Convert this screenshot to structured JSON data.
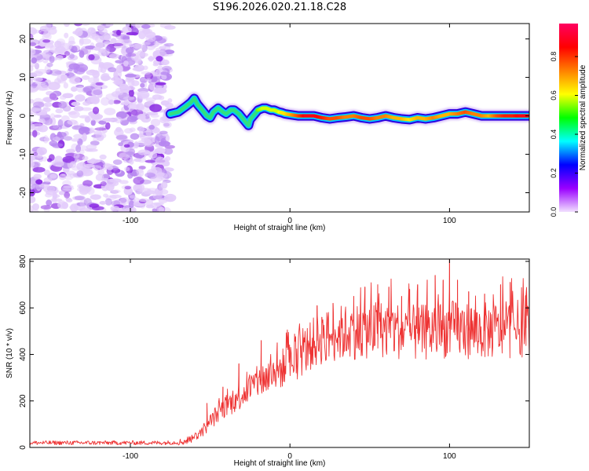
{
  "title": "S196.2026.020.21.18.C28",
  "chart_data": [
    {
      "type": "heatmap",
      "name": "spectrogram",
      "xlabel": "Height of straight line (km)",
      "ylabel": "Frequency (Hz)",
      "xlim": [
        -163,
        150
      ],
      "ylim": [
        -25,
        24
      ],
      "xticks": [
        -100,
        0,
        100
      ],
      "xtick_labels": [
        "-100",
        "0",
        "100"
      ],
      "yticks": [
        -20,
        -10,
        0,
        10,
        20
      ],
      "ytick_labels": [
        "-20",
        "-10",
        "0",
        "10",
        "20"
      ],
      "noise_region_x": [
        -163,
        -75
      ],
      "signal_trace": {
        "x": [
          -75,
          -70,
          -65,
          -62,
          -60,
          -58,
          -55,
          -52,
          -50,
          -48,
          -45,
          -42,
          -40,
          -37,
          -35,
          -32,
          -30,
          -28,
          -26,
          -25,
          -22,
          -20,
          -17,
          -15,
          -12,
          -10,
          -7,
          -5,
          -3,
          0,
          5,
          10,
          15,
          20,
          25,
          30,
          35,
          40,
          45,
          50,
          55,
          60,
          65,
          70,
          75,
          80,
          85,
          90,
          95,
          100,
          105,
          110,
          115,
          120,
          125,
          130,
          135,
          140,
          145,
          150
        ],
        "y": [
          0.5,
          1,
          2.5,
          3.5,
          4.5,
          3,
          1.5,
          0,
          -0.5,
          1,
          2,
          1,
          0.5,
          1.5,
          1.5,
          0.5,
          -0.5,
          -1.5,
          -2.5,
          -1,
          0.5,
          1.5,
          2,
          2,
          1.5,
          1.5,
          1,
          0.8,
          0.5,
          0.3,
          0,
          0,
          0,
          -0.5,
          -0.8,
          -0.5,
          -0.3,
          0,
          -0.5,
          -0.8,
          -0.5,
          0,
          -0.5,
          -0.8,
          -1,
          -0.5,
          -0.8,
          -0.5,
          0,
          0.5,
          0.5,
          1,
          0.5,
          0,
          0,
          0,
          0,
          0,
          0,
          0
        ],
        "amplitude": [
          0.3,
          0.35,
          0.45,
          0.5,
          0.5,
          0.45,
          0.4,
          0.35,
          0.35,
          0.4,
          0.45,
          0.45,
          0.45,
          0.45,
          0.5,
          0.45,
          0.4,
          0.35,
          0.3,
          0.35,
          0.5,
          0.55,
          0.6,
          0.6,
          0.6,
          0.6,
          0.6,
          0.65,
          0.65,
          0.7,
          0.8,
          0.9,
          0.9,
          0.85,
          0.8,
          0.8,
          0.75,
          0.75,
          0.8,
          0.8,
          0.75,
          0.75,
          0.7,
          0.7,
          0.65,
          0.7,
          0.7,
          0.75,
          0.7,
          0.7,
          0.75,
          0.8,
          0.75,
          0.75,
          0.7,
          0.8,
          0.85,
          0.85,
          0.9,
          0.9
        ]
      },
      "colorbar": {
        "label": "Normalized spectral amplitude",
        "range": [
          0,
          0.97
        ],
        "ticks": [
          0.0,
          0.2,
          0.4,
          0.6,
          0.8
        ],
        "tick_labels": [
          "0.0",
          "0.2",
          "0.4",
          "0.6",
          "0.8"
        ],
        "colors": [
          "#f2e1ff",
          "#9a00ff",
          "#0000ff",
          "#00ffff",
          "#00ff00",
          "#ffff00",
          "#ff8000",
          "#ff0000",
          "#ff0060"
        ]
      }
    },
    {
      "type": "line",
      "name": "snr",
      "xlabel": "Height of straight line (km)",
      "ylabel": "SNR (10 * v/v)",
      "xlim": [
        -163,
        150
      ],
      "ylim": [
        0,
        810
      ],
      "xticks": [
        -100,
        0,
        100
      ],
      "xtick_labels": [
        "-100",
        "0",
        "100"
      ],
      "yticks": [
        0,
        200,
        400,
        600,
        800
      ],
      "ytick_labels": [
        "0",
        "200",
        "400",
        "600",
        "800"
      ],
      "color": "#ee3333",
      "series": {
        "x": [
          -163,
          -140,
          -120,
          -100,
          -80,
          -70,
          -65,
          -60,
          -55,
          -50,
          -45,
          -40,
          -35,
          -30,
          -25,
          -20,
          -15,
          -10,
          -5,
          0,
          5,
          10,
          15,
          20,
          30,
          40,
          50,
          60,
          70,
          80,
          90,
          100,
          110,
          120,
          130,
          140,
          150
        ],
        "y": [
          20,
          20,
          20,
          20,
          20,
          22,
          28,
          45,
          70,
          110,
          150,
          180,
          200,
          230,
          260,
          280,
          300,
          320,
          340,
          360,
          390,
          420,
          450,
          470,
          490,
          500,
          505,
          510,
          500,
          490,
          500,
          510,
          505,
          500,
          505,
          510,
          515
        ],
        "spikes": [
          {
            "x": -52,
            "y": 190
          },
          {
            "x": -42,
            "y": 260
          },
          {
            "x": -32,
            "y": 360
          },
          {
            "x": -18,
            "y": 460
          },
          {
            "x": -8,
            "y": 450
          },
          {
            "x": 17,
            "y": 610
          },
          {
            "x": 20,
            "y": 560
          },
          {
            "x": 27,
            "y": 620
          },
          {
            "x": 40,
            "y": 650
          },
          {
            "x": 47,
            "y": 690
          },
          {
            "x": 55,
            "y": 700
          },
          {
            "x": 62,
            "y": 690
          },
          {
            "x": 70,
            "y": 650
          },
          {
            "x": 75,
            "y": 680
          },
          {
            "x": 80,
            "y": 700
          },
          {
            "x": 86,
            "y": 720
          },
          {
            "x": 91,
            "y": 740
          },
          {
            "x": 96,
            "y": 720
          },
          {
            "x": 100,
            "y": 820
          },
          {
            "x": 105,
            "y": 720
          },
          {
            "x": 112,
            "y": 670
          },
          {
            "x": 122,
            "y": 660
          },
          {
            "x": 132,
            "y": 700
          },
          {
            "x": 138,
            "y": 710
          },
          {
            "x": 148,
            "y": 660
          }
        ]
      }
    }
  ]
}
